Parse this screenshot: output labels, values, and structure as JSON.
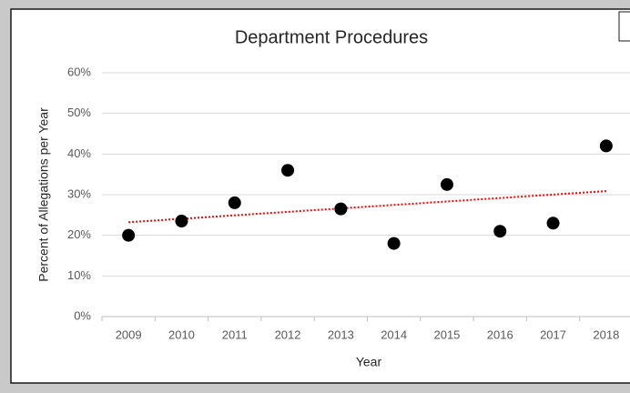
{
  "chart_data": {
    "type": "scatter",
    "title": "Department Procedures",
    "x_label": "Year",
    "y_label": "Percent of Allegations per Year",
    "categories": [
      "2009",
      "2010",
      "2011",
      "2012",
      "2013",
      "2014",
      "2015",
      "2016",
      "2017",
      "2018"
    ],
    "values": [
      20,
      23.5,
      28,
      36,
      26.5,
      18,
      32.5,
      21,
      23,
      42
    ],
    "color": "#000000",
    "trendline": "linear",
    "trendline_color": "#ff0000",
    "ylim": [
      0,
      60
    ],
    "yticks": [
      {
        "value": 0,
        "label": "0%"
      },
      {
        "value": 10,
        "label": "10%"
      },
      {
        "value": 20,
        "label": "20%"
      },
      {
        "value": 30,
        "label": "30%"
      },
      {
        "value": 40,
        "label": "40%"
      },
      {
        "value": 50,
        "label": "50%"
      },
      {
        "value": 60,
        "label": "60%"
      }
    ],
    "grid": true
  }
}
